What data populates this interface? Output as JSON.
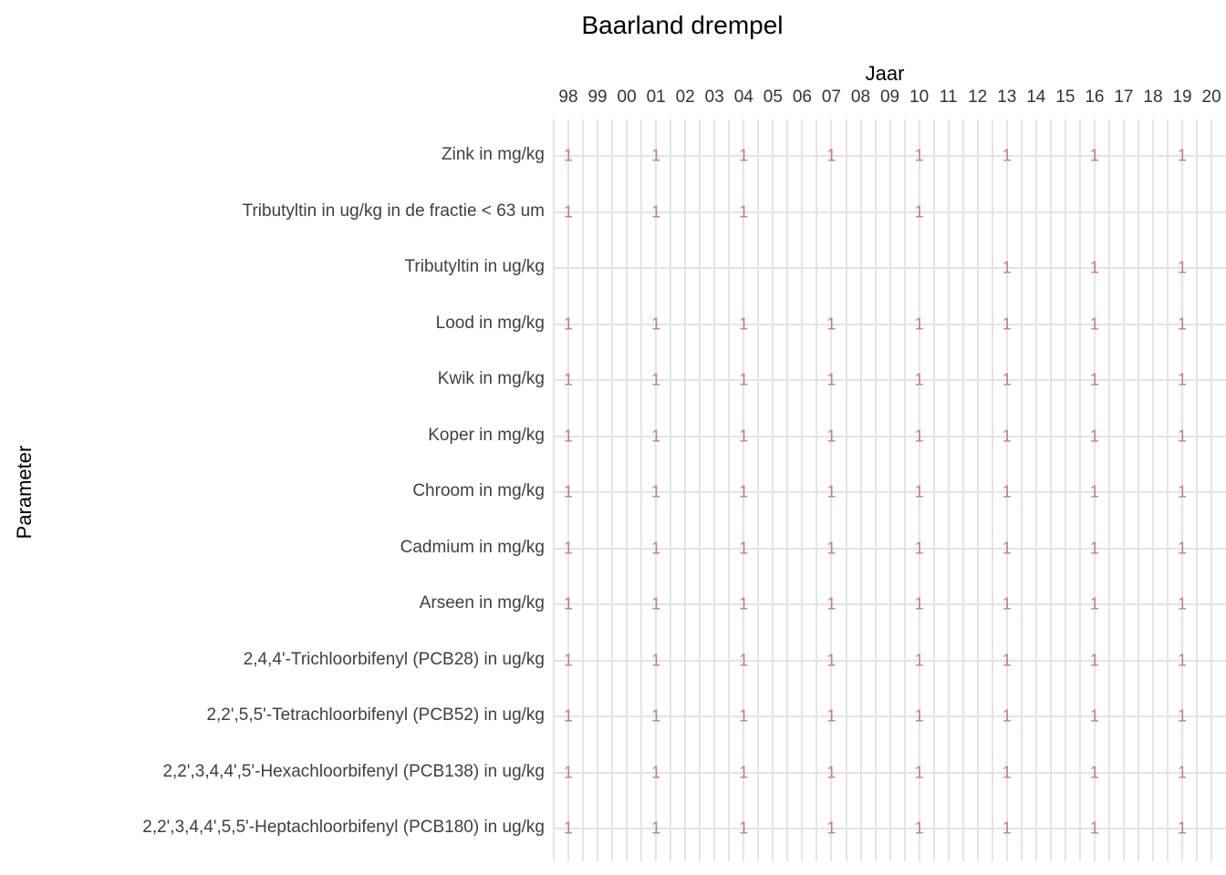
{
  "chart_data": {
    "type": "heatmap",
    "title": "Baarland drempel",
    "xlabel": "Jaar",
    "ylabel": "Parameter",
    "x_ticks": [
      "98",
      "99",
      "00",
      "01",
      "02",
      "03",
      "04",
      "05",
      "06",
      "07",
      "08",
      "09",
      "10",
      "11",
      "12",
      "13",
      "14",
      "15",
      "16",
      "17",
      "18",
      "19",
      "20"
    ],
    "cell_text": "1",
    "legend": "none",
    "grid": true,
    "rows": [
      {
        "label": "Zink in mg/kg",
        "years_with_value": [
          "98",
          "01",
          "04",
          "07",
          "10",
          "13",
          "16",
          "19"
        ]
      },
      {
        "label": "Tributyltin in ug/kg in de fractie < 63 um",
        "years_with_value": [
          "98",
          "01",
          "04",
          "10"
        ]
      },
      {
        "label": "Tributyltin in ug/kg",
        "years_with_value": [
          "13",
          "16",
          "19"
        ]
      },
      {
        "label": "Lood in mg/kg",
        "years_with_value": [
          "98",
          "01",
          "04",
          "07",
          "10",
          "13",
          "16",
          "19"
        ]
      },
      {
        "label": "Kwik in mg/kg",
        "years_with_value": [
          "98",
          "01",
          "04",
          "07",
          "10",
          "13",
          "16",
          "19"
        ]
      },
      {
        "label": "Koper in mg/kg",
        "years_with_value": [
          "98",
          "01",
          "04",
          "07",
          "10",
          "13",
          "16",
          "19"
        ]
      },
      {
        "label": "Chroom in mg/kg",
        "years_with_value": [
          "98",
          "01",
          "04",
          "07",
          "10",
          "13",
          "16",
          "19"
        ]
      },
      {
        "label": "Cadmium in mg/kg",
        "years_with_value": [
          "98",
          "01",
          "04",
          "07",
          "10",
          "13",
          "16",
          "19"
        ]
      },
      {
        "label": "Arseen in mg/kg",
        "years_with_value": [
          "98",
          "01",
          "04",
          "07",
          "10",
          "13",
          "16",
          "19"
        ]
      },
      {
        "label": "2,4,4'-Trichloorbifenyl (PCB28) in ug/kg",
        "years_with_value": [
          "98",
          "01",
          "04",
          "07",
          "10",
          "13",
          "16",
          "19"
        ]
      },
      {
        "label": "2,2',5,5'-Tetrachloorbifenyl (PCB52) in ug/kg",
        "years_with_value": [
          "98",
          "01",
          "04",
          "07",
          "10",
          "13",
          "16",
          "19"
        ]
      },
      {
        "label": "2,2',3,4,4',5'-Hexachloorbifenyl (PCB138) in ug/kg",
        "years_with_value": [
          "98",
          "01",
          "04",
          "07",
          "10",
          "13",
          "16",
          "19"
        ]
      },
      {
        "label": "2,2',3,4,4',5,5'-Heptachloorbifenyl (PCB180) in ug/kg",
        "years_with_value": [
          "98",
          "01",
          "04",
          "07",
          "10",
          "13",
          "16",
          "19"
        ]
      }
    ],
    "colors": {
      "value_text": "#c57b8c",
      "gridline": "#e4e4e4",
      "axis_text": "#404040",
      "title_text": "#000000",
      "background": "#ffffff"
    }
  }
}
